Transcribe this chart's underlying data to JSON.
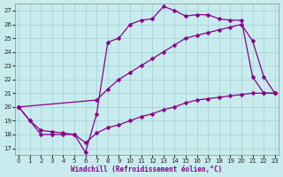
{
  "xlabel": "Windchill (Refroidissement éolien,°C)",
  "xlim": [
    -0.3,
    23.3
  ],
  "ylim": [
    16.5,
    27.5
  ],
  "xticks": [
    0,
    1,
    2,
    3,
    4,
    5,
    6,
    7,
    8,
    9,
    10,
    11,
    12,
    13,
    14,
    15,
    16,
    17,
    18,
    19,
    20,
    21,
    22,
    23
  ],
  "yticks": [
    17,
    18,
    19,
    20,
    21,
    22,
    23,
    24,
    25,
    26,
    27
  ],
  "bg_color": "#c8ecee",
  "grid_color": "#aad4d8",
  "line_color": "#880088",
  "line1_x": [
    0,
    1,
    2,
    3,
    4,
    5,
    6,
    7,
    8,
    9,
    10,
    11,
    12,
    13,
    14,
    15,
    16,
    17,
    18,
    19,
    20,
    21,
    22,
    23
  ],
  "line1_y": [
    20,
    19,
    18,
    18,
    18,
    18,
    16.7,
    19.5,
    24.7,
    25,
    26,
    26.3,
    26.4,
    27.3,
    27,
    26.6,
    26.7,
    26.7,
    26.4,
    26.3,
    26.3,
    22.2,
    21,
    21
  ],
  "line2_x": [
    0,
    7,
    8,
    9,
    10,
    11,
    12,
    13,
    14,
    15,
    16,
    17,
    18,
    19,
    20,
    21,
    22,
    23
  ],
  "line2_y": [
    20,
    20.5,
    21.3,
    22.0,
    22.5,
    23.0,
    23.5,
    24.0,
    24.5,
    25.0,
    25.2,
    25.4,
    25.6,
    25.8,
    26.0,
    24.8,
    22.2,
    21
  ],
  "line3_x": [
    0,
    1,
    2,
    3,
    4,
    5,
    6,
    7,
    8,
    9,
    10,
    11,
    12,
    13,
    14,
    15,
    16,
    17,
    18,
    19,
    20,
    21,
    22,
    23
  ],
  "line3_y": [
    20,
    19,
    18.3,
    18.2,
    18.1,
    18.0,
    17.4,
    18.1,
    18.5,
    18.7,
    19.0,
    19.3,
    19.5,
    19.8,
    20.0,
    20.3,
    20.5,
    20.6,
    20.7,
    20.8,
    20.9,
    21.0,
    21.0,
    21.0
  ],
  "markersize": 2.5,
  "linewidth": 0.9,
  "tick_fontsize": 5,
  "label_fontsize": 5.5
}
